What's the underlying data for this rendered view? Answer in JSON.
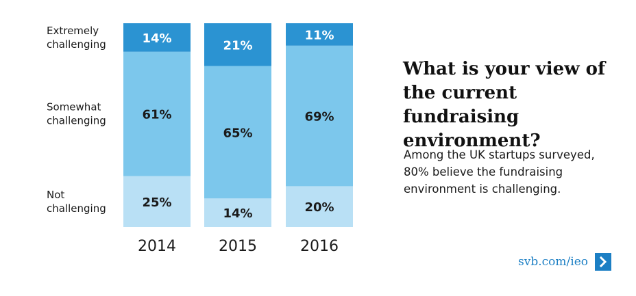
{
  "chart_data": {
    "type": "bar",
    "stacked": true,
    "categories": [
      "2014",
      "2015",
      "2016"
    ],
    "series": [
      {
        "name": "Not challenging",
        "values": [
          25,
          14,
          20
        ],
        "label_lines": [
          "Not",
          "challenging"
        ],
        "color": "#b9e0f5"
      },
      {
        "name": "Somewhat challenging",
        "values": [
          61,
          65,
          69
        ],
        "label_lines": [
          "Somewhat",
          "challenging"
        ],
        "color": "#7cc7ec"
      },
      {
        "name": "Extremely challenging",
        "values": [
          14,
          21,
          11
        ],
        "label_lines": [
          "Extremely",
          "challenging"
        ],
        "color": "#2b93d2"
      }
    ],
    "value_suffix": "%",
    "ylim": [
      0,
      100
    ],
    "title": "What is your view of the current fundraising environment?"
  },
  "text": {
    "title": "What is your view of the current fundraising environment?",
    "description": "Among the UK startups surveyed, 80% believe the fundraising environment is challenging.",
    "link": "svb.com/ieo"
  },
  "colors": {
    "accent": "#1c7fc4",
    "dark_segment": "#2b93d2",
    "mid_segment": "#7cc7ec",
    "light_segment": "#b9e0f5"
  },
  "icons": {
    "link_arrow": "chevron-right-icon"
  }
}
